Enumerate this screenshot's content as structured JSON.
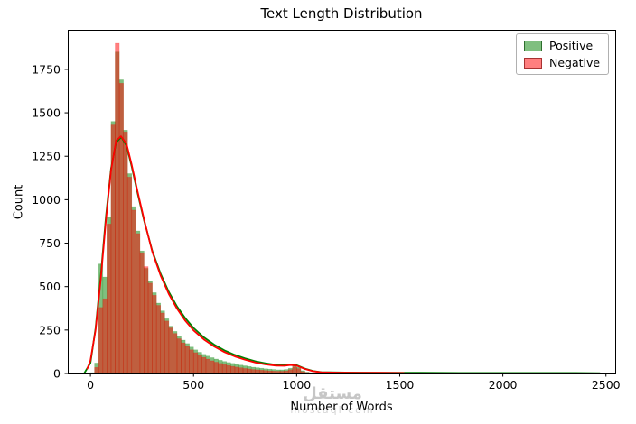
{
  "figure": {
    "title": "Text Length Distribution",
    "watermark": {
      "line1": "مستقل",
      "line2": "mostaql com"
    }
  },
  "chart_data": {
    "type": "histogram",
    "title": "Text Length Distribution",
    "xlabel": "Number of Words",
    "ylabel": "Count",
    "xlim": [
      -110,
      2545
    ],
    "ylim": [
      0,
      1978
    ],
    "x_ticks": [
      0,
      500,
      1000,
      1500,
      2000,
      2500
    ],
    "y_ticks": [
      0,
      250,
      500,
      750,
      1000,
      1250,
      1500,
      1750
    ],
    "grid": false,
    "legend_position": "upper right",
    "bin_width": 20,
    "bins_start": 0,
    "series": [
      {
        "name": "Positive",
        "color": "#008000",
        "bar_opacity": 0.5,
        "legend_fill": "#7fbf7f",
        "legend_edge": "#2d6e2d",
        "counts": [
          5,
          60,
          630,
          555,
          900,
          1450,
          1850,
          1690,
          1400,
          1150,
          960,
          820,
          705,
          605,
          530,
          465,
          405,
          360,
          315,
          272,
          242,
          215,
          192,
          172,
          152,
          136,
          122,
          110,
          100,
          91,
          83,
          76,
          69,
          63,
          58,
          53,
          48,
          44,
          40,
          36,
          33,
          30,
          27,
          25,
          23,
          21,
          21,
          23,
          30,
          46,
          36,
          16,
          8,
          5,
          3
        ],
        "kde": [
          [
            -30,
            2
          ],
          [
            0,
            60
          ],
          [
            25,
            260
          ],
          [
            50,
            560
          ],
          [
            75,
            900
          ],
          [
            100,
            1180
          ],
          [
            125,
            1330
          ],
          [
            150,
            1360
          ],
          [
            175,
            1310
          ],
          [
            200,
            1190
          ],
          [
            230,
            1030
          ],
          [
            260,
            880
          ],
          [
            300,
            705
          ],
          [
            340,
            575
          ],
          [
            380,
            470
          ],
          [
            420,
            385
          ],
          [
            460,
            318
          ],
          [
            500,
            262
          ],
          [
            550,
            208
          ],
          [
            600,
            166
          ],
          [
            650,
            133
          ],
          [
            700,
            107
          ],
          [
            750,
            87
          ],
          [
            800,
            70
          ],
          [
            850,
            58
          ],
          [
            900,
            50
          ],
          [
            940,
            48
          ],
          [
            970,
            52
          ],
          [
            1000,
            48
          ],
          [
            1040,
            28
          ],
          [
            1080,
            14
          ],
          [
            1120,
            8
          ],
          [
            1200,
            6
          ],
          [
            1300,
            5
          ],
          [
            1400,
            4
          ],
          [
            1500,
            4
          ],
          [
            1600,
            4
          ],
          [
            1800,
            3
          ],
          [
            2000,
            3
          ],
          [
            2200,
            3
          ],
          [
            2350,
            3
          ],
          [
            2470,
            2
          ]
        ]
      },
      {
        "name": "Negative",
        "color": "#ff0000",
        "bar_opacity": 0.5,
        "legend_fill": "#ff7f7f",
        "legend_edge": "#a83232",
        "counts": [
          2,
          35,
          380,
          430,
          860,
          1430,
          1900,
          1670,
          1390,
          1130,
          940,
          805,
          695,
          615,
          520,
          450,
          392,
          348,
          302,
          262,
          230,
          200,
          176,
          156,
          136,
          120,
          106,
          93,
          83,
          73,
          65,
          58,
          51,
          46,
          41,
          37,
          33,
          29,
          26,
          23,
          21,
          19,
          17,
          15,
          14,
          13,
          13,
          15,
          22,
          38,
          28,
          11,
          6,
          4,
          2
        ],
        "kde": [
          [
            -15,
            28
          ],
          [
            0,
            75
          ],
          [
            25,
            250
          ],
          [
            50,
            540
          ],
          [
            75,
            880
          ],
          [
            100,
            1170
          ],
          [
            125,
            1340
          ],
          [
            148,
            1365
          ],
          [
            175,
            1320
          ],
          [
            200,
            1200
          ],
          [
            230,
            1040
          ],
          [
            260,
            885
          ],
          [
            300,
            700
          ],
          [
            340,
            565
          ],
          [
            380,
            458
          ],
          [
            420,
            372
          ],
          [
            460,
            303
          ],
          [
            500,
            248
          ],
          [
            550,
            196
          ],
          [
            600,
            155
          ],
          [
            650,
            123
          ],
          [
            700,
            98
          ],
          [
            750,
            79
          ],
          [
            800,
            63
          ],
          [
            850,
            52
          ],
          [
            900,
            45
          ],
          [
            940,
            44
          ],
          [
            970,
            49
          ],
          [
            1000,
            45
          ],
          [
            1040,
            26
          ],
          [
            1080,
            13
          ],
          [
            1120,
            7
          ],
          [
            1200,
            5
          ],
          [
            1300,
            4
          ],
          [
            1400,
            4
          ],
          [
            1520,
            3
          ]
        ]
      }
    ]
  }
}
